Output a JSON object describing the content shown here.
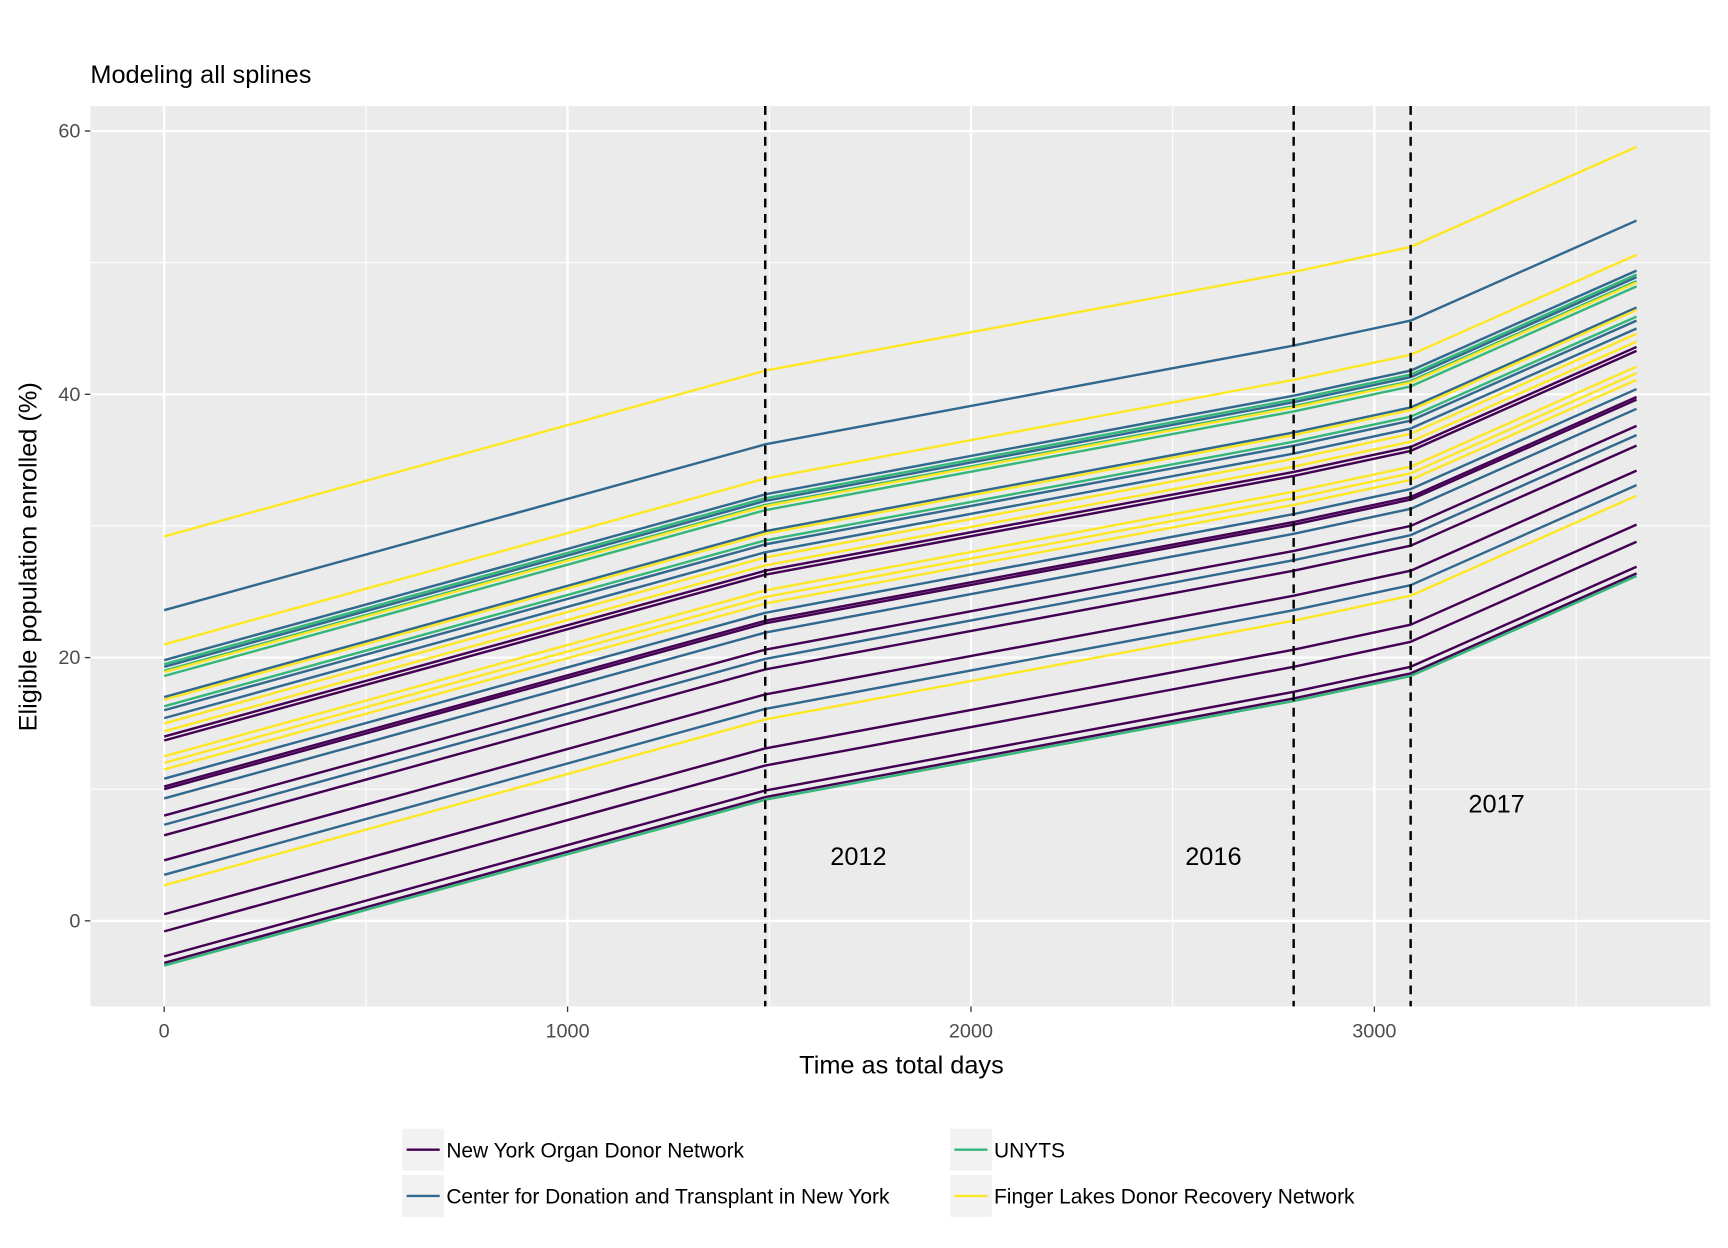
{
  "chart_data": {
    "type": "line",
    "title": "Modeling all splines",
    "x_label": "Time as total days",
    "y_label": "Eligible population enrolled (%)",
    "x": [
      0,
      1490,
      2800,
      3090,
      3650
    ],
    "xlim": [
      -183,
      3833
    ],
    "ylim": [
      -6.5,
      61.9
    ],
    "xticks": [
      0,
      1000,
      2000,
      3000
    ],
    "yticks": [
      0,
      20,
      40,
      60
    ],
    "grid": true,
    "legend_position": "bottom",
    "vlines": [
      1490,
      2800,
      3090
    ],
    "annotations": [
      {
        "text": "2012",
        "x": 1721,
        "y": 4.9
      },
      {
        "text": "2016",
        "x": 2601,
        "y": 4.9
      },
      {
        "text": "2017",
        "x": 3303,
        "y": 8.9
      }
    ],
    "series": [
      {
        "name": "New York Organ Donor Network",
        "color": "#440154",
        "lines": [
          [
            14.0,
            26.6,
            34.1,
            36.0,
            43.6
          ],
          [
            13.7,
            26.3,
            33.8,
            35.7,
            43.3
          ],
          [
            10.2,
            22.8,
            30.3,
            32.2,
            39.8
          ],
          [
            10.0,
            22.6,
            30.1,
            32.0,
            39.6
          ],
          [
            8.0,
            20.6,
            28.1,
            30.0,
            37.6
          ],
          [
            6.5,
            19.1,
            26.6,
            28.5,
            36.1
          ],
          [
            4.6,
            17.2,
            24.7,
            26.6,
            34.2
          ],
          [
            0.5,
            13.1,
            20.6,
            22.5,
            30.1
          ],
          [
            -0.8,
            11.8,
            19.3,
            21.2,
            28.8
          ],
          [
            -2.7,
            9.9,
            17.4,
            19.3,
            26.9
          ],
          [
            -3.2,
            9.4,
            16.9,
            18.8,
            26.4
          ]
        ]
      },
      {
        "name": "Center for Donation and Transplant in New York",
        "color": "#31688e",
        "lines": [
          [
            23.6,
            36.2,
            43.7,
            45.6,
            53.2
          ],
          [
            19.8,
            32.4,
            39.9,
            41.8,
            49.4
          ],
          [
            19.3,
            31.9,
            39.4,
            41.3,
            48.9
          ],
          [
            17.0,
            29.6,
            37.1,
            39.0,
            46.6
          ],
          [
            16.0,
            28.6,
            36.1,
            38.0,
            45.6
          ],
          [
            15.4,
            28.0,
            35.5,
            37.4,
            45.0
          ],
          [
            10.8,
            23.4,
            30.9,
            32.8,
            40.4
          ],
          [
            9.3,
            21.9,
            29.4,
            31.3,
            38.9
          ],
          [
            7.3,
            19.9,
            27.4,
            29.3,
            36.9
          ],
          [
            3.5,
            16.1,
            23.6,
            25.5,
            33.1
          ]
        ]
      },
      {
        "name": "UNYTS",
        "color": "#35b779",
        "lines": [
          [
            19.5,
            32.1,
            39.6,
            41.5,
            49.1
          ],
          [
            19.0,
            31.6,
            39.1,
            41.0,
            48.6
          ],
          [
            18.6,
            31.2,
            38.7,
            40.6,
            48.2
          ],
          [
            16.3,
            28.9,
            36.4,
            38.3,
            45.9
          ],
          [
            -3.4,
            9.2,
            16.7,
            18.6,
            26.2
          ]
        ]
      },
      {
        "name": "Finger Lakes Donor Recovery Network",
        "color": "#fde725",
        "lines": [
          [
            29.2,
            41.8,
            49.3,
            51.2,
            58.8
          ],
          [
            21.0,
            33.6,
            41.1,
            43.0,
            50.6
          ],
          [
            18.9,
            31.5,
            39.0,
            40.9,
            48.5
          ],
          [
            16.8,
            29.4,
            36.9,
            38.8,
            46.4
          ],
          [
            15.0,
            27.6,
            35.1,
            37.0,
            44.6
          ],
          [
            14.4,
            27.0,
            34.5,
            36.4,
            44.0
          ],
          [
            12.5,
            25.1,
            32.6,
            34.5,
            42.1
          ],
          [
            12.0,
            24.6,
            32.1,
            34.0,
            41.6
          ],
          [
            11.5,
            24.1,
            31.6,
            33.5,
            41.1
          ],
          [
            2.7,
            15.3,
            22.8,
            24.7,
            32.3
          ]
        ]
      }
    ]
  }
}
